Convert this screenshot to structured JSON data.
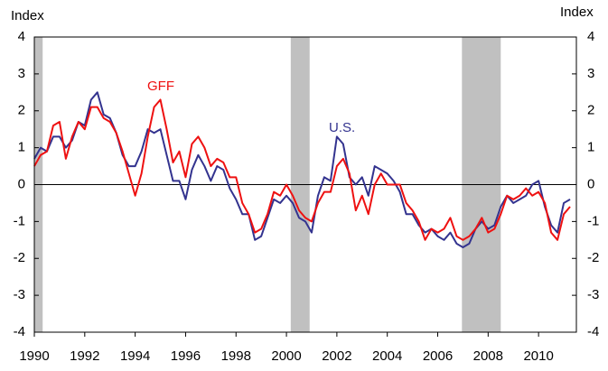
{
  "chart_data": {
    "type": "line",
    "y_label": "Index",
    "y2_label": "Index",
    "x": [
      1990,
      1990.25,
      1990.5,
      1990.75,
      1991,
      1991.25,
      1991.5,
      1991.75,
      1992,
      1992.25,
      1992.5,
      1992.75,
      1993,
      1993.25,
      1993.5,
      1993.75,
      1994,
      1994.25,
      1994.5,
      1994.75,
      1995,
      1995.25,
      1995.5,
      1995.75,
      1996,
      1996.25,
      1996.5,
      1996.75,
      1997,
      1997.25,
      1997.5,
      1997.75,
      1998,
      1998.25,
      1998.5,
      1998.75,
      1999,
      1999.25,
      1999.5,
      1999.75,
      2000,
      2000.25,
      2000.5,
      2000.75,
      2001,
      2001.25,
      2001.5,
      2001.75,
      2002,
      2002.25,
      2002.5,
      2002.75,
      2003,
      2003.25,
      2003.5,
      2003.75,
      2004,
      2004.25,
      2004.5,
      2004.75,
      2005,
      2005.25,
      2005.5,
      2005.75,
      2006,
      2006.25,
      2006.5,
      2006.75,
      2007,
      2007.25,
      2007.5,
      2007.75,
      2008,
      2008.25,
      2008.5,
      2008.75,
      2009,
      2009.25,
      2009.5,
      2009.75,
      2010,
      2010.25,
      2010.5,
      2010.75,
      2011,
      2011.25
    ],
    "series": [
      {
        "name": "GFF",
        "color": "#ee1111",
        "values": [
          0.5,
          0.8,
          0.9,
          1.6,
          1.7,
          0.7,
          1.3,
          1.7,
          1.5,
          2.1,
          2.1,
          1.8,
          1.7,
          1.4,
          0.9,
          0.3,
          -0.3,
          0.3,
          1.3,
          2.1,
          2.3,
          1.5,
          0.6,
          0.9,
          0.2,
          1.1,
          1.3,
          1.0,
          0.5,
          0.7,
          0.6,
          0.2,
          0.2,
          -0.5,
          -0.8,
          -1.3,
          -1.2,
          -0.8,
          -0.2,
          -0.3,
          0.0,
          -0.3,
          -0.7,
          -0.9,
          -1.0,
          -0.5,
          -0.2,
          -0.2,
          0.5,
          0.7,
          0.3,
          -0.7,
          -0.3,
          -0.8,
          0.0,
          0.3,
          0.0,
          0.0,
          0.0,
          -0.5,
          -0.7,
          -1.0,
          -1.5,
          -1.2,
          -1.3,
          -1.2,
          -0.9,
          -1.4,
          -1.5,
          -1.4,
          -1.2,
          -0.9,
          -1.3,
          -1.2,
          -0.8,
          -0.3,
          -0.4,
          -0.3,
          -0.1,
          -0.3,
          -0.2,
          -0.5,
          -1.3,
          -1.5,
          -0.8,
          -0.6
        ]
      },
      {
        "name": "U.S.",
        "color": "#33338f",
        "values": [
          0.7,
          1.0,
          0.9,
          1.3,
          1.3,
          1.0,
          1.2,
          1.7,
          1.6,
          2.3,
          2.5,
          1.9,
          1.8,
          1.4,
          0.8,
          0.5,
          0.5,
          0.9,
          1.5,
          1.4,
          1.5,
          0.8,
          0.1,
          0.1,
          -0.4,
          0.4,
          0.8,
          0.5,
          0.1,
          0.5,
          0.4,
          -0.1,
          -0.4,
          -0.8,
          -0.8,
          -1.5,
          -1.4,
          -0.9,
          -0.4,
          -0.5,
          -0.3,
          -0.5,
          -0.9,
          -1.0,
          -1.3,
          -0.3,
          0.2,
          0.1,
          1.3,
          1.1,
          0.2,
          0.0,
          0.2,
          -0.3,
          0.5,
          0.4,
          0.3,
          0.1,
          -0.2,
          -0.8,
          -0.8,
          -1.1,
          -1.3,
          -1.2,
          -1.4,
          -1.5,
          -1.3,
          -1.6,
          -1.7,
          -1.6,
          -1.2,
          -1.0,
          -1.2,
          -1.1,
          -0.6,
          -0.3,
          -0.5,
          -0.4,
          -0.3,
          0.0,
          0.1,
          -0.6,
          -1.1,
          -1.3,
          -0.5,
          -0.4
        ]
      }
    ],
    "recessions": [
      [
        1990,
        1990.33
      ],
      [
        2000.17,
        2000.92
      ],
      [
        2006.96,
        2008.5
      ]
    ],
    "recession_color": "#c0c0c0",
    "xlim": [
      1990,
      2011.5
    ],
    "xticks": [
      1990,
      1992,
      1994,
      1996,
      1998,
      2000,
      2002,
      2004,
      2006,
      2008,
      2010
    ],
    "ylim": [
      -4,
      4
    ],
    "yticks": [
      -4,
      -3,
      -2,
      -1,
      0,
      1,
      2,
      3,
      4
    ],
    "y2lim": [
      -4,
      4
    ],
    "y2ticks": [
      -4,
      -3,
      -2,
      -1,
      0,
      1,
      2,
      3,
      4
    ]
  }
}
